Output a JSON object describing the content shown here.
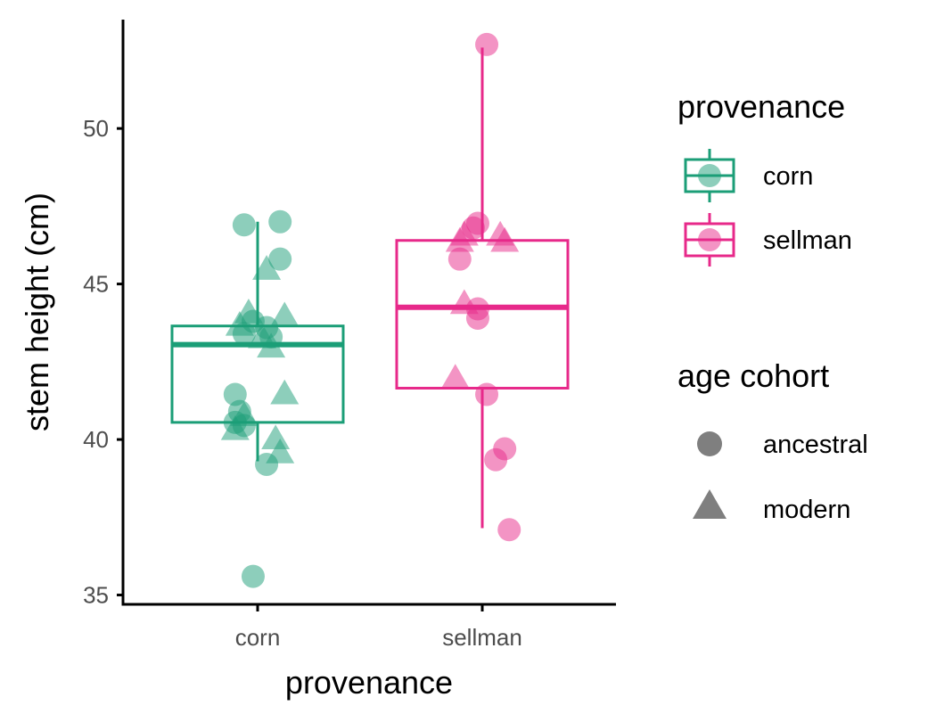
{
  "chart_data": {
    "type": "box",
    "xlabel": "provenance",
    "ylabel": "stem height (cm)",
    "ylim": [
      34.7,
      53.5
    ],
    "yticks": [
      "35",
      "40",
      "45",
      "50"
    ],
    "categories": [
      "corn",
      "sellman"
    ],
    "colors": {
      "corn": "#1b9e77",
      "sellman": "#e7298a"
    },
    "boxes": [
      {
        "category": "corn",
        "min": 39.3,
        "q1": 40.55,
        "median": 43.05,
        "q3": 43.65,
        "max": 47.0
      },
      {
        "category": "sellman",
        "min": 37.15,
        "q1": 41.65,
        "median": 44.25,
        "q3": 46.4,
        "max": 52.6
      }
    ],
    "points": [
      {
        "category": "corn",
        "cohort": "ancestral",
        "dx": -0.06,
        "y": 46.9
      },
      {
        "category": "corn",
        "cohort": "ancestral",
        "dx": 0.1,
        "y": 47.0
      },
      {
        "category": "corn",
        "cohort": "ancestral",
        "dx": 0.1,
        "y": 45.8
      },
      {
        "category": "corn",
        "cohort": "ancestral",
        "dx": -0.02,
        "y": 43.8
      },
      {
        "category": "corn",
        "cohort": "ancestral",
        "dx": 0.04,
        "y": 43.6
      },
      {
        "category": "corn",
        "cohort": "ancestral",
        "dx": -0.06,
        "y": 43.4
      },
      {
        "category": "corn",
        "cohort": "ancestral",
        "dx": 0.06,
        "y": 43.3
      },
      {
        "category": "corn",
        "cohort": "ancestral",
        "dx": -0.1,
        "y": 41.45
      },
      {
        "category": "corn",
        "cohort": "ancestral",
        "dx": -0.08,
        "y": 40.9
      },
      {
        "category": "corn",
        "cohort": "ancestral",
        "dx": -0.1,
        "y": 40.55
      },
      {
        "category": "corn",
        "cohort": "ancestral",
        "dx": -0.06,
        "y": 40.45
      },
      {
        "category": "corn",
        "cohort": "ancestral",
        "dx": 0.04,
        "y": 39.2
      },
      {
        "category": "corn",
        "cohort": "ancestral",
        "dx": -0.02,
        "y": 35.6
      },
      {
        "category": "corn",
        "cohort": "modern",
        "dx": 0.04,
        "y": 45.4
      },
      {
        "category": "corn",
        "cohort": "modern",
        "dx": -0.04,
        "y": 44.0
      },
      {
        "category": "corn",
        "cohort": "modern",
        "dx": 0.12,
        "y": 43.9
      },
      {
        "category": "corn",
        "cohort": "modern",
        "dx": -0.08,
        "y": 43.6
      },
      {
        "category": "corn",
        "cohort": "modern",
        "dx": 0.02,
        "y": 43.2
      },
      {
        "category": "corn",
        "cohort": "modern",
        "dx": 0.06,
        "y": 42.9
      },
      {
        "category": "corn",
        "cohort": "modern",
        "dx": 0.12,
        "y": 41.4
      },
      {
        "category": "corn",
        "cohort": "modern",
        "dx": -0.06,
        "y": 40.7
      },
      {
        "category": "corn",
        "cohort": "modern",
        "dx": -0.1,
        "y": 40.25
      },
      {
        "category": "corn",
        "cohort": "modern",
        "dx": 0.08,
        "y": 39.95
      },
      {
        "category": "corn",
        "cohort": "modern",
        "dx": 0.1,
        "y": 39.5
      },
      {
        "category": "sellman",
        "cohort": "ancestral",
        "dx": 0.02,
        "y": 52.7
      },
      {
        "category": "sellman",
        "cohort": "ancestral",
        "dx": -0.02,
        "y": 46.95
      },
      {
        "category": "sellman",
        "cohort": "ancestral",
        "dx": -0.04,
        "y": 46.8
      },
      {
        "category": "sellman",
        "cohort": "ancestral",
        "dx": -0.1,
        "y": 45.8
      },
      {
        "category": "sellman",
        "cohort": "ancestral",
        "dx": -0.02,
        "y": 44.2
      },
      {
        "category": "sellman",
        "cohort": "ancestral",
        "dx": -0.02,
        "y": 43.9
      },
      {
        "category": "sellman",
        "cohort": "ancestral",
        "dx": 0.02,
        "y": 41.45
      },
      {
        "category": "sellman",
        "cohort": "ancestral",
        "dx": 0.1,
        "y": 39.7
      },
      {
        "category": "sellman",
        "cohort": "ancestral",
        "dx": 0.06,
        "y": 39.35
      },
      {
        "category": "sellman",
        "cohort": "ancestral",
        "dx": 0.12,
        "y": 37.1
      },
      {
        "category": "sellman",
        "cohort": "modern",
        "dx": -0.08,
        "y": 46.5
      },
      {
        "category": "sellman",
        "cohort": "modern",
        "dx": -0.1,
        "y": 46.3
      },
      {
        "category": "sellman",
        "cohort": "modern",
        "dx": 0.08,
        "y": 46.5
      },
      {
        "category": "sellman",
        "cohort": "modern",
        "dx": 0.1,
        "y": 46.3
      },
      {
        "category": "sellman",
        "cohort": "modern",
        "dx": -0.08,
        "y": 44.3
      },
      {
        "category": "sellman",
        "cohort": "modern",
        "dx": -0.12,
        "y": 41.9
      }
    ],
    "legend": {
      "placement": "right",
      "color_title": "provenance",
      "color_items": [
        "corn",
        "sellman"
      ],
      "shape_title": "age cohort",
      "shape_items": [
        {
          "label": "ancestral",
          "shape": "circle"
        },
        {
          "label": "modern",
          "shape": "triangle"
        }
      ]
    },
    "grid": false
  }
}
